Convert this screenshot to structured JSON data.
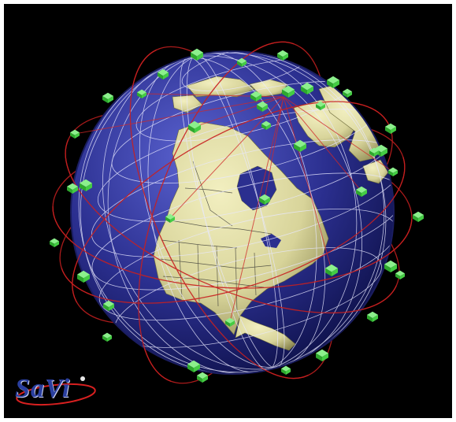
{
  "image": {
    "subject": "satellite-constellation-orbiting-earth",
    "colors": {
      "background": "#000000",
      "frame": "#ffffff",
      "ocean": "#2b2f8f",
      "land": "#d8d49a",
      "grid": "#e8e8ff",
      "orbit": "#c82020",
      "satellite": "#33cc33"
    }
  },
  "logo": {
    "text": "SaVi",
    "color": "#2a3f9f",
    "swoosh_color": "#d82020"
  }
}
